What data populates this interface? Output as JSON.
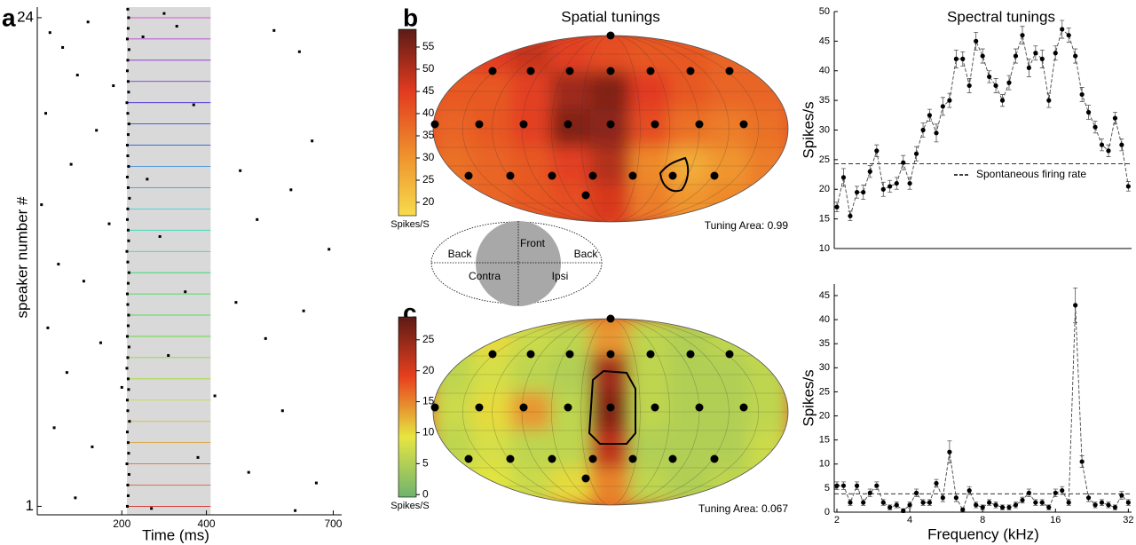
{
  "chart_data": [
    {
      "type": "raster",
      "panel": "a",
      "xlabel": "Time (ms)",
      "ylabel": "speaker number #",
      "xlim": [
        0,
        720
      ],
      "ylim": [
        0.6,
        24.5
      ],
      "xticks": [
        200,
        400,
        700
      ],
      "yticks": [
        1,
        24
      ],
      "shade": [
        212,
        410
      ],
      "shade_color": "#d9d9d9",
      "color": "#000000",
      "x": [
        213,
        215,
        214,
        217,
        212,
        216,
        215,
        213,
        218,
        214,
        213,
        216,
        215,
        212,
        214,
        217,
        213,
        215,
        216,
        214,
        213,
        215,
        217,
        214,
        212,
        216,
        215,
        213,
        214,
        218,
        215,
        213,
        216,
        214,
        213,
        215,
        217,
        214,
        212,
        216,
        215,
        213,
        214,
        217,
        213,
        215,
        216,
        214,
        30,
        60,
        120,
        250,
        300,
        330,
        560,
        620,
        95,
        180,
        20,
        140,
        370,
        650,
        80,
        260,
        480,
        600,
        10,
        170,
        290,
        520,
        690,
        50,
        110,
        350,
        470,
        630,
        25,
        150,
        310,
        540,
        70,
        200,
        420,
        580,
        40,
        130,
        380,
        500,
        660,
        90,
        270,
        610
      ],
      "y": [
        1,
        1.5,
        2,
        2.5,
        3,
        3.5,
        4,
        4.5,
        5,
        5.5,
        6,
        6.5,
        7,
        7.5,
        8,
        8.5,
        9,
        9.5,
        10,
        10.5,
        11,
        11.5,
        12,
        12.5,
        13,
        13.5,
        14,
        14.5,
        15,
        15.5,
        16,
        16.5,
        17,
        17.5,
        18,
        18.5,
        19,
        19.5,
        20,
        20.5,
        21,
        21.5,
        22,
        22.5,
        23,
        23.5,
        24,
        24.4,
        23.3,
        22.6,
        23.8,
        23.1,
        24.2,
        23.6,
        23.4,
        22.4,
        21.3,
        20.8,
        19.5,
        18.7,
        19.9,
        18.2,
        17.1,
        16.4,
        16.8,
        15.9,
        15.2,
        14.3,
        13.7,
        14.5,
        13.1,
        12.4,
        11.6,
        11.1,
        10.6,
        10.2,
        9.4,
        8.7,
        8.1,
        8.9,
        7.3,
        6.6,
        6.2,
        5.5,
        4.7,
        3.8,
        3.3,
        2.6,
        2.1,
        1.4,
        0.9,
        0.8
      ]
    },
    {
      "type": "heatmap",
      "panel": "b",
      "title": "Spatial tunings",
      "annotation": "Tuning Area: 0.99",
      "colorbar_label": "Spikes/S",
      "colormap": [
        "#f7dc4c",
        "#ef8f2c",
        "#e23b20",
        "#5c1b16"
      ],
      "clim": [
        17,
        59
      ],
      "cticks": [
        20,
        25,
        30,
        35,
        40,
        45,
        50,
        55
      ],
      "grid": [
        [
          42,
          45,
          48,
          44,
          42,
          40,
          40,
          38,
          38
        ],
        [
          40,
          40,
          44,
          52,
          55,
          45,
          40,
          38,
          38
        ],
        [
          38,
          40,
          44,
          55,
          54,
          42,
          36,
          34,
          36
        ],
        [
          36,
          38,
          40,
          44,
          50,
          32,
          26,
          30,
          34
        ],
        [
          36,
          38,
          40,
          42,
          46,
          34,
          30,
          32,
          34
        ]
      ]
    },
    {
      "type": "heatmap",
      "panel": "c",
      "annotation": "Tuning Area: 0.067",
      "colorbar_label": "Spikes/S",
      "colormap": [
        "#6fb36f",
        "#e6e640",
        "#e8401e",
        "#5c1b16"
      ],
      "clim": [
        -0.4,
        28.7
      ],
      "cticks": [
        0,
        5,
        10,
        15,
        20,
        25
      ],
      "grid": [
        [
          6,
          10,
          7,
          6,
          14,
          6,
          5,
          6,
          8
        ],
        [
          6,
          8,
          6,
          5,
          24,
          6,
          5,
          5,
          6
        ],
        [
          7,
          10,
          14,
          6,
          26,
          6,
          5,
          5,
          6
        ],
        [
          6,
          8,
          6,
          6,
          22,
          5,
          5,
          5,
          7
        ],
        [
          8,
          9,
          7,
          10,
          15,
          6,
          5,
          6,
          7
        ]
      ]
    },
    {
      "type": "line",
      "title": "Spectral tunings",
      "ylabel": "Spikes/s",
      "xscale": "log",
      "color": "#000000",
      "xlim": [
        1.95,
        33
      ],
      "ylim": [
        10,
        50
      ],
      "yticks": [
        10,
        15,
        20,
        25,
        30,
        35,
        40,
        45,
        50
      ],
      "reference_line": 24.3,
      "legend": "Spontaneous firing rate",
      "x": [
        2,
        2.13,
        2.27,
        2.42,
        2.57,
        2.74,
        2.92,
        3.11,
        3.31,
        3.53,
        3.76,
        4,
        4.26,
        4.54,
        4.83,
        5.15,
        5.48,
        5.84,
        6.22,
        6.62,
        7.05,
        7.51,
        8,
        8.52,
        9.07,
        9.66,
        10.29,
        10.96,
        11.68,
        12.43,
        13.24,
        14.1,
        15.02,
        16,
        17.04,
        18.15,
        19.33,
        20.59,
        21.92,
        23.35,
        24.87,
        26.49,
        28.21,
        30.04,
        32
      ],
      "values": [
        17,
        22,
        15.5,
        19.5,
        19.5,
        23,
        26.5,
        20,
        20.5,
        21,
        24.5,
        21,
        26,
        30,
        32.5,
        29.5,
        34,
        35,
        42,
        42,
        37.5,
        45,
        42.5,
        39,
        37.5,
        35,
        38,
        42.5,
        46,
        40.5,
        43,
        42,
        35,
        43,
        47,
        46,
        42.5,
        36,
        33,
        30.5,
        27.5,
        26.5,
        32,
        27.5,
        20.5
      ],
      "errors": [
        0.8,
        1.5,
        0.8,
        1,
        1.2,
        1,
        1,
        1.2,
        1,
        1,
        1.2,
        1,
        1.2,
        1.2,
        1,
        1.5,
        1.5,
        1.2,
        1.5,
        1.2,
        1.2,
        1.5,
        1.2,
        1,
        1.2,
        1,
        1.2,
        1.2,
        1.5,
        1.5,
        1.2,
        1.5,
        1.2,
        1.2,
        1.5,
        1.2,
        1.2,
        1.2,
        1.2,
        1,
        1,
        1,
        1,
        1,
        0.8
      ]
    },
    {
      "type": "line",
      "ylabel": "Spikes/s",
      "xlabel": "Frequency (kHz)",
      "xscale": "log",
      "color": "#000000",
      "xlim": [
        1.95,
        33
      ],
      "xticks": [
        2,
        4,
        8,
        16,
        32
      ],
      "ylim": [
        0,
        47.4
      ],
      "yticks": [
        0,
        5,
        10,
        15,
        20,
        25,
        30,
        35,
        40,
        45
      ],
      "reference_line": 3.8,
      "x": [
        2,
        2.13,
        2.27,
        2.42,
        2.57,
        2.74,
        2.92,
        3.11,
        3.31,
        3.53,
        3.76,
        4,
        4.26,
        4.54,
        4.83,
        5.15,
        5.48,
        5.84,
        6.22,
        6.62,
        7.05,
        7.51,
        8,
        8.52,
        9.07,
        9.66,
        10.29,
        10.96,
        11.68,
        12.43,
        13.24,
        14.1,
        15.02,
        16,
        17.04,
        18.15,
        19.33,
        20.59,
        21.92,
        23.35,
        24.87,
        26.49,
        28.21,
        30.04,
        32
      ],
      "values": [
        5.5,
        5.5,
        2,
        5.5,
        2,
        4,
        5.5,
        2,
        1,
        1.5,
        0.3,
        1.5,
        4,
        2,
        2,
        6,
        3,
        12.5,
        3,
        0.5,
        4.5,
        1.5,
        1,
        2,
        1.5,
        1,
        1,
        1.5,
        2.5,
        4,
        2,
        2,
        1,
        4,
        4.5,
        2,
        43,
        10.5,
        3,
        1.5,
        2,
        1.5,
        1,
        3.5,
        2
      ],
      "errors": [
        0.8,
        0.8,
        0.6,
        0.8,
        0.6,
        0.8,
        0.8,
        0.6,
        0.5,
        0.6,
        0.4,
        0.6,
        0.8,
        0.6,
        0.6,
        0.8,
        0.8,
        2.3,
        0.8,
        0.4,
        0.8,
        0.6,
        0.5,
        0.6,
        0.6,
        0.5,
        0.5,
        0.6,
        0.6,
        0.8,
        0.6,
        0.6,
        0.5,
        0.8,
        0.8,
        0.6,
        3.6,
        1.2,
        0.8,
        0.6,
        0.6,
        0.6,
        0.5,
        0.8,
        0.6
      ]
    }
  ],
  "diagram": {
    "labels": [
      "Front",
      "Back",
      "Back",
      "Contra",
      "Ipsi"
    ]
  }
}
